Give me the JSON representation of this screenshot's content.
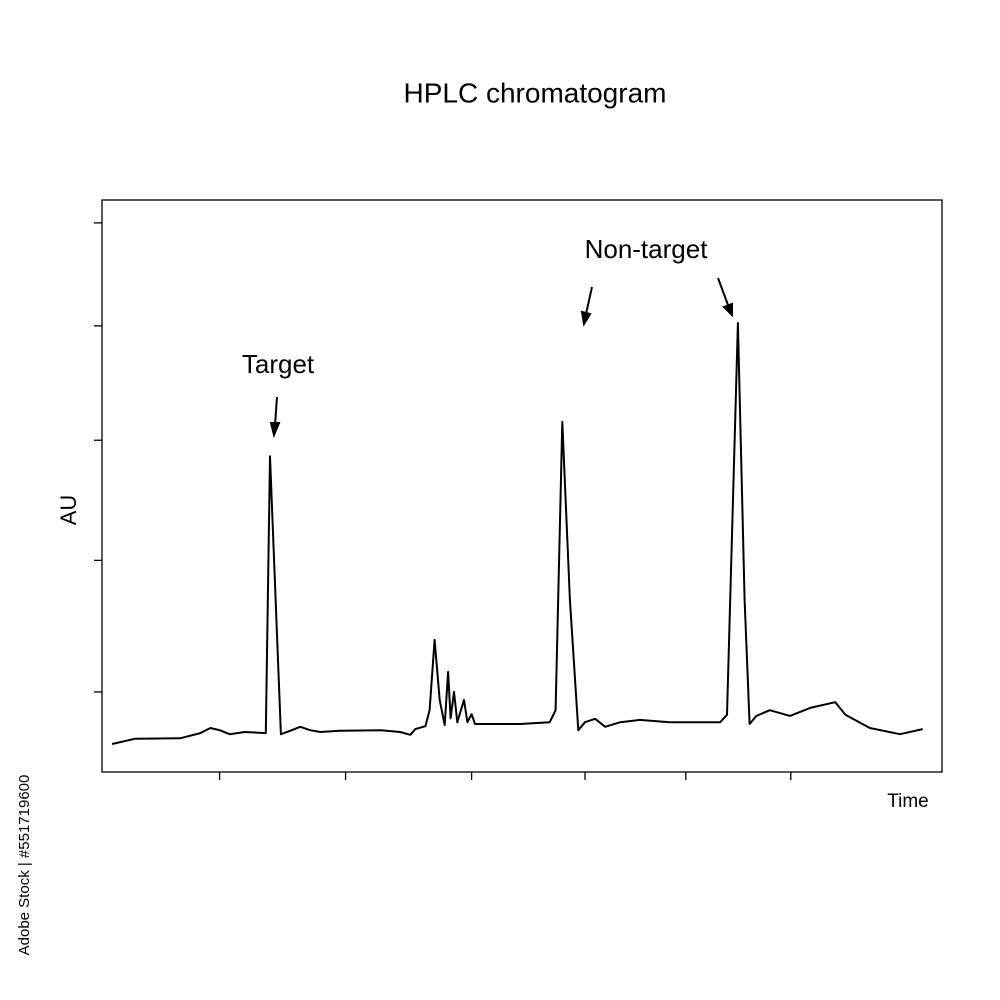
{
  "chart_data": {
    "type": "line",
    "title": "HPLC chromatogram",
    "xlabel": "Time",
    "ylabel": "AU",
    "xlim": [
      0,
      100
    ],
    "ylim": [
      0,
      100
    ],
    "xticks": [
      14,
      29,
      44,
      57.5,
      69.5,
      82
    ],
    "yticks": [
      14,
      37,
      58,
      78,
      96
    ],
    "annotations": [
      "Target",
      "Non-target"
    ],
    "source": "Adobe Stock | #551719600",
    "series": [
      {
        "color": "#000000",
        "x": [
          1.2,
          3.9,
          9.3,
          11.7,
          12.9,
          14.0,
          15.2,
          17.0,
          19.5,
          20.0,
          21.3,
          22.4,
          23.6,
          24.8,
          26.0,
          28.3,
          33.1,
          35.5,
          36.7,
          37.3,
          38.5,
          39.0,
          39.6,
          40.2,
          40.8,
          41.2,
          41.5,
          41.9,
          42.3,
          43.1,
          43.5,
          44.0,
          44.4,
          46.2,
          49.8,
          53.3,
          54.0,
          54.8,
          55.7,
          56.7,
          57.5,
          58.7,
          59.9,
          61.7,
          64.0,
          67.6,
          73.6,
          74.4,
          75.7,
          76.5,
          77.1,
          77.9,
          79.5,
          81.9,
          84.3,
          87.3,
          88.5,
          91.4,
          95.0,
          97.7
        ],
        "values": [
          4.9,
          5.8,
          5.9,
          6.8,
          7.7,
          7.3,
          6.6,
          7.0,
          6.8,
          55.2,
          6.6,
          7.2,
          7.9,
          7.3,
          7.0,
          7.2,
          7.3,
          7.0,
          6.5,
          7.5,
          8.0,
          10.8,
          23.1,
          12.6,
          8.2,
          17.5,
          9.4,
          14.0,
          8.7,
          12.6,
          8.7,
          10.1,
          8.4,
          8.4,
          8.4,
          8.7,
          10.8,
          61.2,
          30.1,
          7.3,
          8.7,
          9.3,
          7.9,
          8.7,
          9.1,
          8.7,
          8.7,
          10.0,
          78.5,
          30.1,
          8.4,
          9.8,
          10.8,
          9.8,
          11.2,
          12.2,
          10.0,
          7.7,
          6.6,
          7.5
        ]
      }
    ]
  }
}
